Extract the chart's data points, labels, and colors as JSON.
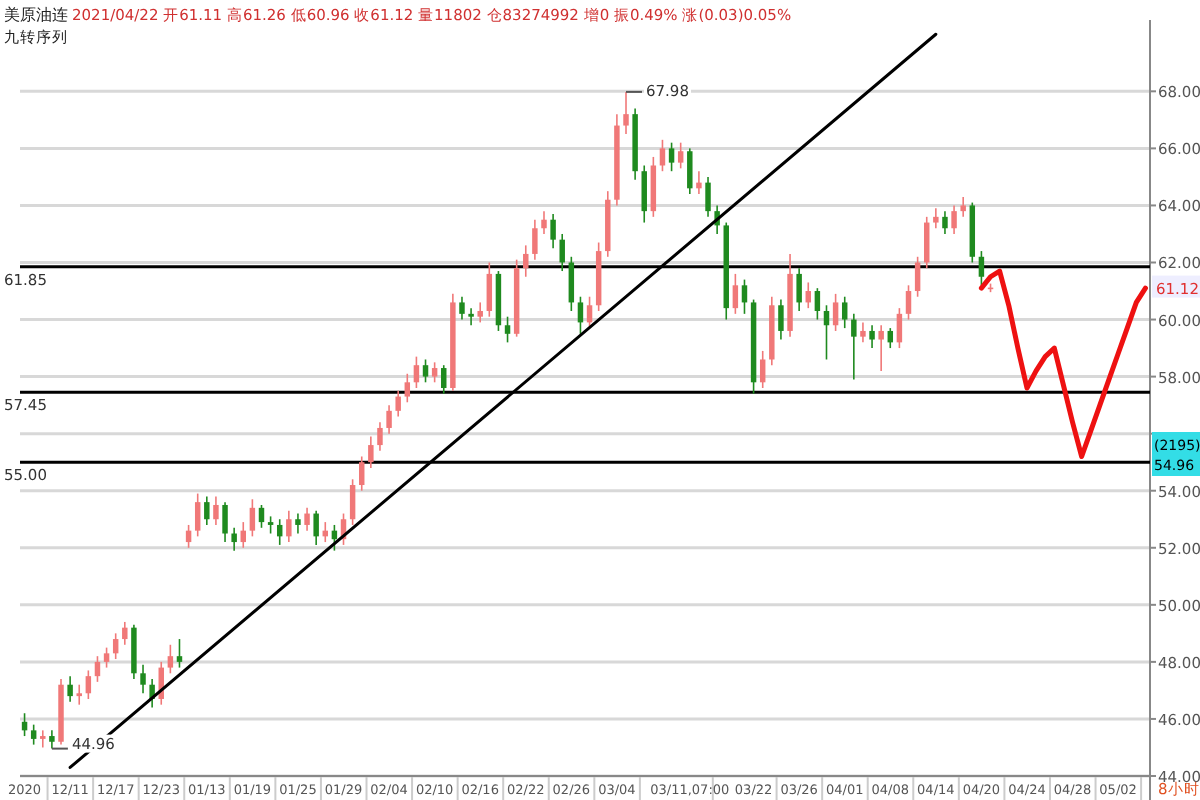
{
  "chart_data": {
    "type": "candlestick",
    "title": "美原油连",
    "subtitle": "2021/04/22 开61.11 高61.26 低60.96 收61.12 量11802 仓83274992 增0 振0.49% 涨(0.03)0.05%",
    "categories": [
      "2020",
      null,
      null,
      null,
      null,
      "12/11",
      null,
      null,
      null,
      null,
      "12/17",
      null,
      null,
      null,
      null,
      "12/23",
      null,
      null,
      null,
      null,
      "01/13",
      null,
      null,
      null,
      null,
      "01/19",
      null,
      null,
      null,
      null,
      "01/25",
      null,
      null,
      null,
      null,
      "01/29",
      null,
      null,
      null,
      null,
      "02/04",
      null,
      null,
      null,
      null,
      "02/10",
      null,
      null,
      null,
      null,
      "02/16",
      null,
      null,
      null,
      null,
      "02/22",
      null,
      null,
      null,
      null,
      "02/26",
      null,
      null,
      null,
      null,
      "03/04",
      null,
      null,
      null,
      null,
      null,
      null,
      null,
      "03/11,07:00",
      null,
      null,
      null,
      null,
      null,
      null,
      "03/22",
      null,
      null,
      null,
      null,
      "03/26",
      null,
      null,
      null,
      null,
      "04/01",
      null,
      null,
      null,
      null,
      "04/08",
      null,
      null,
      null,
      null,
      "04/14",
      null,
      null,
      null,
      null,
      "04/20",
      null,
      null,
      null,
      null,
      "04/24",
      null,
      null,
      null,
      null,
      "04/28",
      null,
      null,
      null,
      null,
      "05/02",
      null,
      null,
      null
    ],
    "ohlc": [
      [
        45.9,
        46.2,
        45.4,
        45.6
      ],
      [
        45.6,
        45.8,
        45.1,
        45.3
      ],
      [
        45.3,
        45.6,
        45.0,
        45.4
      ],
      [
        45.4,
        45.6,
        44.96,
        45.2
      ],
      [
        45.2,
        47.4,
        45.1,
        47.2
      ],
      [
        47.2,
        47.5,
        46.6,
        46.8
      ],
      [
        46.8,
        47.2,
        46.5,
        46.9
      ],
      [
        46.9,
        47.7,
        46.7,
        47.5
      ],
      [
        47.5,
        48.2,
        47.3,
        48.0
      ],
      [
        48.0,
        48.5,
        47.8,
        48.3
      ],
      [
        48.3,
        49.0,
        48.1,
        48.8
      ],
      [
        48.8,
        49.4,
        48.6,
        49.2
      ],
      [
        49.2,
        49.3,
        47.4,
        47.6
      ],
      [
        47.6,
        47.9,
        46.9,
        47.2
      ],
      [
        47.2,
        47.4,
        46.4,
        46.7
      ],
      [
        46.7,
        48.0,
        46.5,
        47.8
      ],
      [
        47.8,
        48.6,
        47.6,
        48.2
      ],
      [
        48.2,
        48.8,
        47.8,
        48.0
      ],
      [
        52.2,
        52.8,
        52.0,
        52.6
      ],
      [
        52.6,
        53.9,
        52.4,
        53.6
      ],
      [
        53.6,
        53.8,
        52.8,
        53.0
      ],
      [
        53.0,
        53.8,
        52.8,
        53.5
      ],
      [
        53.5,
        53.6,
        52.2,
        52.5
      ],
      [
        52.5,
        52.7,
        51.9,
        52.2
      ],
      [
        52.2,
        52.9,
        52.0,
        52.6
      ],
      [
        52.6,
        53.7,
        52.4,
        53.4
      ],
      [
        53.4,
        53.5,
        52.7,
        52.9
      ],
      [
        52.9,
        53.1,
        52.5,
        52.8
      ],
      [
        52.8,
        53.0,
        52.1,
        52.4
      ],
      [
        52.4,
        53.3,
        52.2,
        53.0
      ],
      [
        53.0,
        53.2,
        52.5,
        52.8
      ],
      [
        52.8,
        53.4,
        52.6,
        53.2
      ],
      [
        53.2,
        53.3,
        52.1,
        52.4
      ],
      [
        52.4,
        52.9,
        52.2,
        52.6
      ],
      [
        52.6,
        52.8,
        51.9,
        52.3
      ],
      [
        52.3,
        53.2,
        52.1,
        53.0
      ],
      [
        53.0,
        54.4,
        52.8,
        54.2
      ],
      [
        54.2,
        55.2,
        54.0,
        55.0
      ],
      [
        55.0,
        55.9,
        54.8,
        55.6
      ],
      [
        55.6,
        56.4,
        55.4,
        56.2
      ],
      [
        56.2,
        57.0,
        56.0,
        56.8
      ],
      [
        56.8,
        57.5,
        56.6,
        57.3
      ],
      [
        57.3,
        58.1,
        57.1,
        57.8
      ],
      [
        57.8,
        58.7,
        57.6,
        58.4
      ],
      [
        58.4,
        58.6,
        57.8,
        58.0
      ],
      [
        58.0,
        58.5,
        57.8,
        58.3
      ],
      [
        58.3,
        58.4,
        57.4,
        57.6
      ],
      [
        57.6,
        60.9,
        57.5,
        60.6
      ],
      [
        60.6,
        60.8,
        60.0,
        60.2
      ],
      [
        60.2,
        60.4,
        59.8,
        60.1
      ],
      [
        60.1,
        60.6,
        59.9,
        60.3
      ],
      [
        60.3,
        62.0,
        60.1,
        61.6
      ],
      [
        61.6,
        61.7,
        59.6,
        59.8
      ],
      [
        59.8,
        60.1,
        59.2,
        59.5
      ],
      [
        59.5,
        62.1,
        59.4,
        61.8
      ],
      [
        61.8,
        62.6,
        61.5,
        62.3
      ],
      [
        62.3,
        63.5,
        62.1,
        63.2
      ],
      [
        63.2,
        63.8,
        63.0,
        63.5
      ],
      [
        63.5,
        63.7,
        62.5,
        62.8
      ],
      [
        62.8,
        63.0,
        61.7,
        62.0
      ],
      [
        62.0,
        62.2,
        60.3,
        60.6
      ],
      [
        60.6,
        60.8,
        59.5,
        59.9
      ],
      [
        59.9,
        60.8,
        59.7,
        60.5
      ],
      [
        60.5,
        62.7,
        60.3,
        62.4
      ],
      [
        62.4,
        64.5,
        62.2,
        64.2
      ],
      [
        64.2,
        67.2,
        64.0,
        66.8
      ],
      [
        66.8,
        67.98,
        66.5,
        67.2
      ],
      [
        67.2,
        67.4,
        64.9,
        65.2
      ],
      [
        65.2,
        65.4,
        63.4,
        63.8
      ],
      [
        63.8,
        65.7,
        63.6,
        65.4
      ],
      [
        65.4,
        66.3,
        65.2,
        66.0
      ],
      [
        66.0,
        66.2,
        65.2,
        65.5
      ],
      [
        65.5,
        66.2,
        65.3,
        65.9
      ],
      [
        65.9,
        66.0,
        64.4,
        64.6
      ],
      [
        64.6,
        65.2,
        64.4,
        64.8
      ],
      [
        64.8,
        65.0,
        63.6,
        63.8
      ],
      [
        63.8,
        64.0,
        63.0,
        63.3
      ],
      [
        63.3,
        63.4,
        60.0,
        60.4
      ],
      [
        60.4,
        61.6,
        60.2,
        61.2
      ],
      [
        61.2,
        61.4,
        60.2,
        60.6
      ],
      [
        60.6,
        60.7,
        57.4,
        57.8
      ],
      [
        57.8,
        58.9,
        57.6,
        58.6
      ],
      [
        58.6,
        60.8,
        58.4,
        60.5
      ],
      [
        60.5,
        60.7,
        59.3,
        59.6
      ],
      [
        59.6,
        62.3,
        59.4,
        61.6
      ],
      [
        61.6,
        61.8,
        60.3,
        60.6
      ],
      [
        60.6,
        61.3,
        60.4,
        61.0
      ],
      [
        61.0,
        61.1,
        60.0,
        60.3
      ],
      [
        60.3,
        60.5,
        58.6,
        59.8
      ],
      [
        59.8,
        60.9,
        59.6,
        60.6
      ],
      [
        60.6,
        60.8,
        59.7,
        60.0
      ],
      [
        60.0,
        60.2,
        57.9,
        59.4
      ],
      [
        59.4,
        59.9,
        59.2,
        59.6
      ],
      [
        59.6,
        59.8,
        59.0,
        59.3
      ],
      [
        59.3,
        59.8,
        58.2,
        59.6
      ],
      [
        59.6,
        59.7,
        59.0,
        59.2
      ],
      [
        59.2,
        60.4,
        59.0,
        60.2
      ],
      [
        60.2,
        61.2,
        60.0,
        61.0
      ],
      [
        61.0,
        62.2,
        60.8,
        62.0
      ],
      [
        62.0,
        63.6,
        61.8,
        63.4
      ],
      [
        63.4,
        63.9,
        63.2,
        63.6
      ],
      [
        63.6,
        63.8,
        63.0,
        63.2
      ],
      [
        63.2,
        64.0,
        63.0,
        63.8
      ],
      [
        63.8,
        64.3,
        63.6,
        64.0
      ],
      [
        64.0,
        64.1,
        62.0,
        62.2
      ],
      [
        62.2,
        62.4,
        61.2,
        61.5
      ],
      [
        61.11,
        61.26,
        60.96,
        61.12
      ],
      null,
      null,
      null,
      null,
      null,
      null,
      null,
      null,
      null,
      null,
      null,
      null,
      null,
      null,
      null,
      null,
      null
    ],
    "series": [
      {
        "type": "line",
        "color": "#000000",
        "x": [
          "12/11",
          "04/14"
        ],
        "values": [
          44.3,
          70.0
        ]
      },
      {
        "type": "line",
        "color": "#ee1111",
        "values": [
          null,
          null,
          null,
          null,
          null,
          null,
          null,
          null,
          null,
          null,
          null,
          null,
          null,
          null,
          null,
          null,
          null,
          null,
          null,
          null,
          null,
          null,
          null,
          null,
          null,
          null,
          null,
          null,
          null,
          null,
          null,
          null,
          null,
          null,
          null,
          null,
          null,
          null,
          null,
          null,
          null,
          null,
          null,
          null,
          null,
          null,
          null,
          null,
          null,
          null,
          null,
          null,
          null,
          null,
          null,
          null,
          null,
          null,
          null,
          null,
          null,
          null,
          null,
          null,
          null,
          null,
          null,
          null,
          null,
          null,
          null,
          null,
          null,
          null,
          null,
          null,
          null,
          null,
          null,
          null,
          null,
          null,
          null,
          null,
          null,
          null,
          null,
          null,
          null,
          null,
          null,
          null,
          null,
          null,
          null,
          null,
          null,
          null,
          null,
          null,
          null,
          null,
          null,
          null,
          null,
          61.1,
          61.5,
          61.7,
          60.5,
          59.0,
          57.6,
          58.2,
          58.7,
          59.0,
          57.7,
          56.4,
          55.2,
          56.1,
          57.0,
          57.9,
          58.8,
          59.7,
          60.6,
          61.1
        ]
      }
    ],
    "ylim": [
      44,
      70.5
    ],
    "yticks": [
      {
        "value": 44,
        "label": "44.00"
      },
      {
        "value": 46,
        "label": "46.00"
      },
      {
        "value": 48,
        "label": "48.00"
      },
      {
        "value": 50,
        "label": "50.00"
      },
      {
        "value": 52,
        "label": "52.00"
      },
      {
        "value": 54,
        "label": "54.00"
      },
      {
        "value": 56,
        "label": null
      },
      {
        "value": 58,
        "label": "58.00"
      },
      {
        "value": 60,
        "label": "60.00"
      },
      {
        "value": 62,
        "label": "62.00"
      },
      {
        "value": 64,
        "label": "64.00"
      },
      {
        "value": 66,
        "label": "66.00"
      },
      {
        "value": 68,
        "label": "68.00"
      }
    ],
    "grid": "y",
    "ref_lines": [
      {
        "axis": "y",
        "value": 61.85,
        "label": "61.85",
        "color": "#000000"
      },
      {
        "axis": "y",
        "value": 57.45,
        "label": "57.45",
        "color": "#000000"
      },
      {
        "axis": "y",
        "value": 55.0,
        "label": "55.00",
        "color": "#000000"
      }
    ],
    "annotations": [
      "九转序列",
      "67.98",
      "44.96",
      "61.12",
      "54.96",
      "(2195)",
      "8小时"
    ]
  }
}
